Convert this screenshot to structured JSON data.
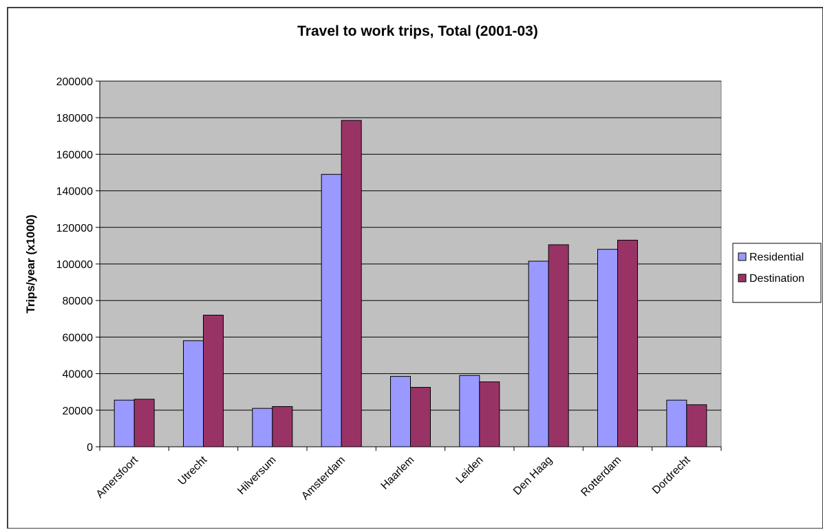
{
  "chart_data": {
    "type": "bar",
    "title": "Travel to work trips, Total  (2001-03)",
    "xlabel": "",
    "ylabel": "Trips/year (x1000)",
    "ylim": [
      0,
      200000
    ],
    "yticks": [
      0,
      20000,
      40000,
      60000,
      80000,
      100000,
      120000,
      140000,
      160000,
      180000,
      200000
    ],
    "grid": true,
    "legend_position": "right",
    "categories": [
      "Amersfoort",
      "Utrecht",
      "Hilversum",
      "Amsterdam",
      "Haarlem",
      "Leiden",
      "Den Haag",
      "Rotterdam",
      "Dordrecht"
    ],
    "series": [
      {
        "name": "Residential",
        "color": "#9999ff",
        "values": [
          25500,
          58000,
          21000,
          149000,
          38500,
          39000,
          101500,
          108000,
          25500
        ]
      },
      {
        "name": "Destination",
        "color": "#993366",
        "values": [
          26000,
          72000,
          22000,
          178500,
          32500,
          35500,
          110500,
          113000,
          23000
        ]
      }
    ],
    "plot_background": "#c0c0c0"
  }
}
